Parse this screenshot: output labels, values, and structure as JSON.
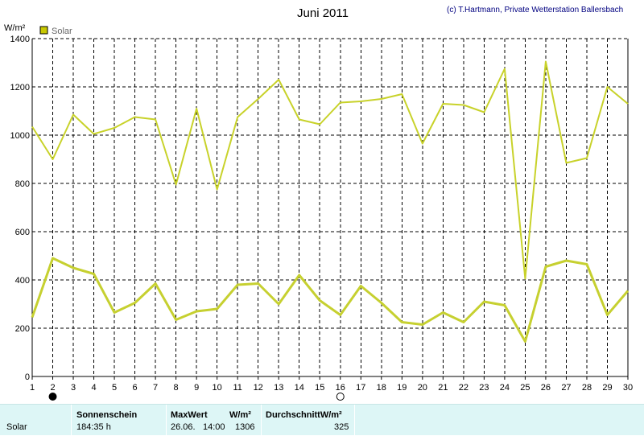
{
  "header": {
    "title": "Juni 2011",
    "copyright": "(c) T.Hartmann, Private Wetterstation Ballersbach"
  },
  "legend": {
    "label": "Solar",
    "color": "#c8c800"
  },
  "colors": {
    "line": "#c8d22a",
    "line_dark": "#c6d030",
    "grid": "#000000",
    "panel": "#ddf6f6"
  },
  "chart_data": {
    "type": "line",
    "title": "Juni 2011",
    "ylabel": "W/m²",
    "ylim": [
      0,
      1400
    ],
    "y_ticks": [
      0,
      200,
      400,
      600,
      800,
      1000,
      1200,
      1400
    ],
    "x": [
      1,
      2,
      3,
      4,
      5,
      6,
      7,
      8,
      9,
      10,
      11,
      12,
      13,
      14,
      15,
      16,
      17,
      18,
      19,
      20,
      21,
      22,
      23,
      24,
      25,
      26,
      27,
      28,
      29,
      30
    ],
    "grid": true,
    "legend_position": "top-left",
    "series": [
      {
        "name": "Solar",
        "kind": "max",
        "values": [
          1035,
          900,
          1085,
          1005,
          1030,
          1075,
          1065,
          795,
          1110,
          775,
          1075,
          1150,
          1230,
          1065,
          1045,
          1135,
          1140,
          1150,
          1170,
          965,
          1130,
          1125,
          1095,
          1275,
          405,
          1305,
          885,
          905,
          1200,
          1130
        ]
      },
      {
        "name": "Solar",
        "kind": "avg",
        "values": [
          245,
          490,
          450,
          425,
          265,
          305,
          385,
          235,
          270,
          280,
          380,
          385,
          300,
          420,
          315,
          255,
          375,
          305,
          225,
          215,
          265,
          225,
          310,
          295,
          145,
          455,
          480,
          465,
          255,
          355
        ]
      }
    ],
    "markers": [
      {
        "x": 2,
        "symbol": "filled-circle"
      },
      {
        "x": 16,
        "symbol": "open-circle"
      }
    ]
  },
  "summary": {
    "row_label": "Solar",
    "sunshine_header": "Sonnenschein",
    "sunshine_value": "184:35 h",
    "max_header": "MaxWert",
    "max_unit": "W/m²",
    "max_date": "26.06.",
    "max_time": "14:00",
    "max_value": "1306",
    "avg_header": "DurchschnittW/m²",
    "avg_value": "325"
  }
}
